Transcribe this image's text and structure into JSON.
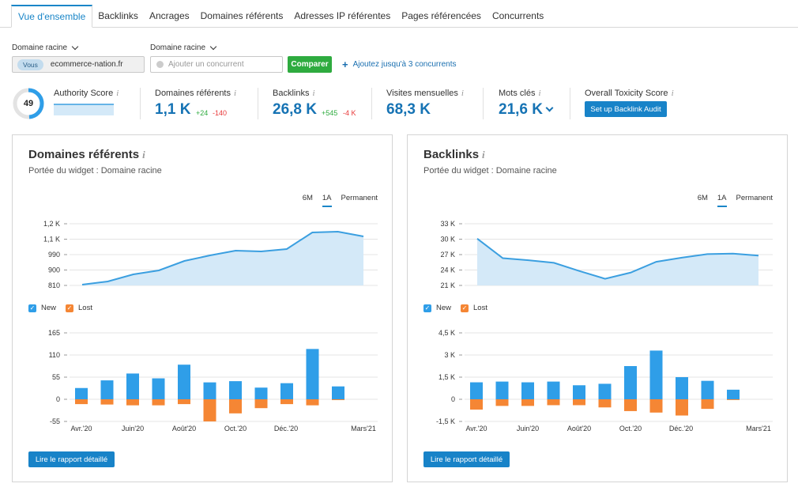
{
  "tabs": [
    "Vue d'ensemble",
    "Backlinks",
    "Ancrages",
    "Domaines référents",
    "Adresses IP référentes",
    "Pages référencées",
    "Concurrents"
  ],
  "filters": {
    "label_left": "Domaine racine",
    "label_right": "Domaine racine",
    "you_pill": "Vous",
    "you_domain": "ecommerce-nation.fr",
    "competitor_placeholder": "Ajouter un concurrent",
    "compare_label": "Comparer",
    "add_link": "Ajoutez jusqu'à 3 concurrents"
  },
  "metrics": {
    "authority": {
      "title": "Authority Score",
      "value": "49",
      "score": 49
    },
    "ref_domains": {
      "title": "Domaines référents",
      "value": "1,1 K",
      "plus": "+24",
      "minus": "-140"
    },
    "backlinks": {
      "title": "Backlinks",
      "value": "26,8 K",
      "plus": "+545",
      "minus": "-4 K"
    },
    "visits": {
      "title": "Visites mensuelles",
      "value": "68,3 K"
    },
    "keywords": {
      "title": "Mots clés",
      "value": "21,6 K"
    },
    "toxicity": {
      "title": "Overall Toxicity Score",
      "button": "Set up Backlink Audit"
    }
  },
  "info_icon": "i",
  "colors": {
    "accent": "#1883c8",
    "green": "#2eab3f",
    "red": "#e8393a",
    "new": "#2f9ee8",
    "lost": "#f58634",
    "area_fill": "#d4e9f8",
    "area_line": "#3b9fe0"
  },
  "panels": [
    {
      "title": "Domaines référents",
      "subtitle": "Portée du widget : Domaine racine",
      "periods": [
        "6M",
        "1A",
        "Permanent"
      ],
      "active_period": "1A",
      "legend": [
        "New",
        "Lost"
      ],
      "button": "Lire le rapport détaillé"
    },
    {
      "title": "Backlinks",
      "subtitle": "Portée du widget : Domaine racine",
      "periods": [
        "6M",
        "1A",
        "Permanent"
      ],
      "active_period": "1A",
      "legend": [
        "New",
        "Lost"
      ],
      "button": "Lire le rapport détaillé"
    }
  ],
  "chart_data": [
    {
      "type": "area",
      "title": "Domaines référents",
      "y_ticks": [
        "1,2 K",
        "1,1 K",
        "990",
        "900",
        "810"
      ],
      "ylim": [
        810,
        1200
      ],
      "values": [
        815,
        835,
        880,
        905,
        965,
        1000,
        1030,
        1025,
        1040,
        1145,
        1150,
        1120
      ]
    },
    {
      "type": "bar",
      "title": "Domaines référents",
      "y_ticks": [
        "165",
        "110",
        "55",
        "0",
        "-55"
      ],
      "ylim": [
        -55,
        165
      ],
      "x_ticks": [
        "Avr.'20",
        "Juin'20",
        "Août'20",
        "Oct.'20",
        "Déc.'20",
        "Mars'21"
      ],
      "series": [
        {
          "name": "New",
          "values": [
            28,
            47,
            64,
            52,
            86,
            42,
            45,
            29,
            40,
            125,
            32
          ]
        },
        {
          "name": "Lost",
          "values": [
            -12,
            -13,
            -15,
            -15,
            -12,
            -55,
            -35,
            -22,
            -12,
            -15,
            -2
          ]
        }
      ]
    },
    {
      "type": "area",
      "title": "Backlinks",
      "y_ticks": [
        "33 K",
        "30 K",
        "27 K",
        "24 K",
        "21 K"
      ],
      "ylim": [
        21000,
        33000
      ],
      "values": [
        30100,
        26300,
        25900,
        25400,
        23800,
        22300,
        23500,
        25600,
        26400,
        27100,
        27200,
        26800
      ]
    },
    {
      "type": "bar",
      "title": "Backlinks",
      "y_ticks": [
        "4,5 K",
        "3 K",
        "1,5 K",
        "0",
        "-1,5 K"
      ],
      "ylim": [
        -1500,
        4500
      ],
      "x_ticks": [
        "Avr.'20",
        "Juin'20",
        "Août'20",
        "Oct.'20",
        "Déc.'20",
        "Mars'21"
      ],
      "series": [
        {
          "name": "New",
          "values": [
            1150,
            1200,
            1150,
            1200,
            950,
            1050,
            2250,
            3300,
            1500,
            1250,
            650
          ]
        },
        {
          "name": "Lost",
          "values": [
            -700,
            -450,
            -450,
            -400,
            -400,
            -550,
            -800,
            -900,
            -1100,
            -650,
            -50
          ]
        }
      ]
    }
  ]
}
